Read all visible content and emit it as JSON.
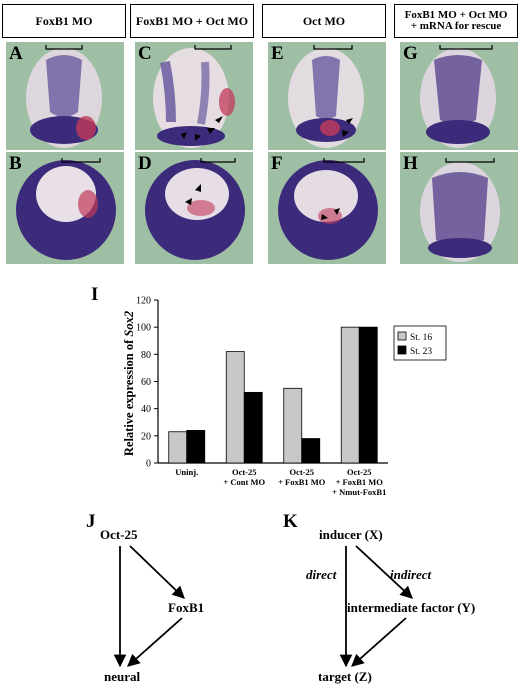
{
  "headers": [
    "FoxB1 MO",
    "FoxB1 MO + Oct MO",
    "Oct MO",
    [
      "FoxB1 MO + Oct MO",
      "+ mRNA for rescue"
    ]
  ],
  "panel_letters": [
    "A",
    "B",
    "C",
    "D",
    "E",
    "F",
    "G",
    "H"
  ],
  "colors": {
    "background_green": "#9fbfa5",
    "stain_purple": "#3c2a7a",
    "stain_red": "#c23a5a",
    "bar_grey": "#c8c8c8",
    "bar_black": "#000000"
  },
  "chart_label": "I",
  "chart_data": {
    "type": "bar",
    "categories": [
      [
        "Uninj."
      ],
      [
        "Oct-25",
        "+ Cont MO"
      ],
      [
        "Oct-25",
        "+ FoxB1 MO"
      ],
      [
        "Oct-25",
        "+ FoxB1 MO",
        "+ Nmut-FoxB1"
      ]
    ],
    "series": [
      {
        "name": "St. 16",
        "color": "#c8c8c8",
        "values": [
          23,
          82,
          55,
          100
        ]
      },
      {
        "name": "St. 23",
        "color": "#000000",
        "values": [
          24,
          52,
          18,
          100
        ]
      }
    ],
    "ylabel_prefix": "Relative  expression  of ",
    "ylabel_gene": "Sox2",
    "ylim": [
      0,
      120
    ],
    "yticks": [
      0,
      20,
      40,
      60,
      80,
      100,
      120
    ],
    "legend_placement": "right",
    "grid": false
  },
  "diagram_j": {
    "label": "J",
    "top": "Oct-25",
    "mid": "FoxB1",
    "bottom": "neural"
  },
  "diagram_k": {
    "label": "K",
    "top": "inducer (X)",
    "mid": "intermediate factor (Y)",
    "bottom": "target (Z)",
    "edge_direct": "direct",
    "edge_indirect": "indirect"
  }
}
